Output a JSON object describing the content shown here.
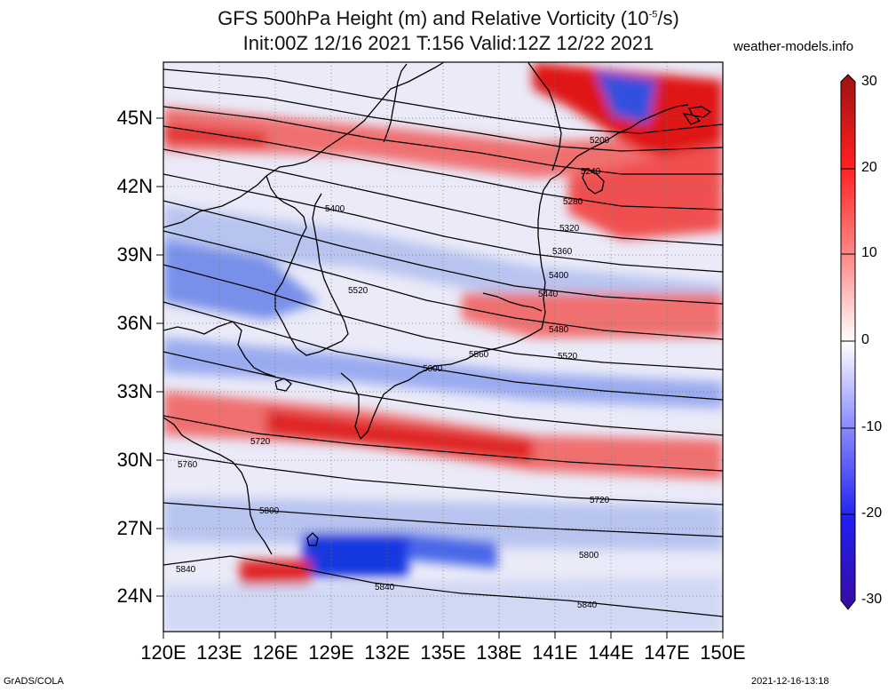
{
  "title": {
    "line1_prefix": "GFS 500hPa Height (m) and Relative Vorticity (10",
    "line1_sup": "-5",
    "line1_suffix": "/s)",
    "line2": "Init:00Z 12/16 2021 T:156 Valid:12Z 12/22 2021"
  },
  "watermark": "weather-models.info",
  "footer_left": "GrADS/COLA",
  "footer_right": "2021-12-16-13:18",
  "lat_labels": [
    "45N",
    "42N",
    "39N",
    "36N",
    "33N",
    "30N",
    "27N",
    "24N"
  ],
  "lon_labels": [
    "120E",
    "123E",
    "126E",
    "129E",
    "132E",
    "135E",
    "138E",
    "141E",
    "144E",
    "147E",
    "150E"
  ],
  "colorbar": {
    "labels": [
      "30",
      "20",
      "10",
      "0",
      "-10",
      "-20",
      "-30"
    ],
    "colors": {
      "max": "#8b1010",
      "pos": "#ff2a2a",
      "zero": "#ffffff",
      "neg": "#2a2aff",
      "min": "#3a0aa0"
    }
  },
  "contours": [
    {
      "label": "5200"
    },
    {
      "label": "5240"
    },
    {
      "label": "5280"
    },
    {
      "label": "5320"
    },
    {
      "label": "5360"
    },
    {
      "label": "5400"
    },
    {
      "label": "5400"
    },
    {
      "label": "5440"
    },
    {
      "label": "5480"
    },
    {
      "label": "5520"
    },
    {
      "label": "5520"
    },
    {
      "label": "5560"
    },
    {
      "label": "5600"
    },
    {
      "label": "5720"
    },
    {
      "label": "5720"
    },
    {
      "label": "5760"
    },
    {
      "label": "5800"
    },
    {
      "label": "5800"
    },
    {
      "label": "5840"
    },
    {
      "label": "5840"
    },
    {
      "label": "5840"
    }
  ],
  "vorticity_colors": {
    "strong_pos": "#e01818",
    "pos": "#f07070",
    "weak_pos": "#f8c0c0",
    "neutral": "#f4f4fb",
    "weak_neg": "#c0c8f4",
    "neg": "#7890ea",
    "strong_neg": "#1030d8"
  }
}
